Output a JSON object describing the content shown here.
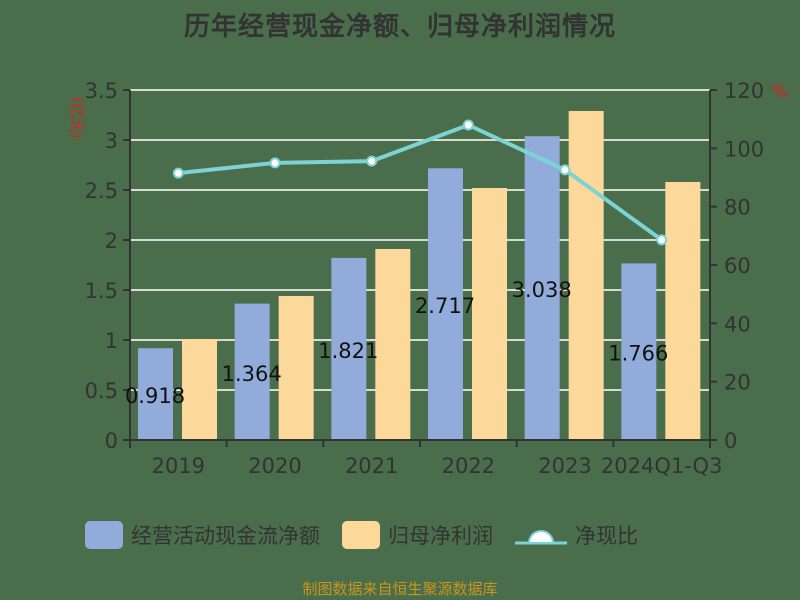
{
  "title": "历年经营现金净额、归母净利润情况",
  "source": "制图数据来自恒生聚源数据库",
  "colors": {
    "background": "#4a6e4b",
    "cash_flow_bar": "#91acdb",
    "net_profit_bar": "#fdd89b",
    "ratio_line": "#7dd3d3",
    "axis_unit": "#e0201c",
    "axis_text": "#333333",
    "grid": "#d8dcd0"
  },
  "chart_data": {
    "type": "bar+line",
    "title": "历年经营现金净额、归母净利润情况",
    "categories": [
      "2019",
      "2020",
      "2021",
      "2022",
      "2023",
      "2024Q1-Q3"
    ],
    "series": [
      {
        "name": "经营活动现金流净额",
        "type": "bar",
        "axis": "left",
        "values": [
          0.918,
          1.364,
          1.821,
          2.717,
          3.038,
          1.766
        ],
        "data_labels": [
          "0.918",
          "1.364",
          "1.821",
          "2.717",
          "3.038",
          "1.766"
        ]
      },
      {
        "name": "归母净利润",
        "type": "bar",
        "axis": "left",
        "values": [
          1.01,
          1.44,
          1.91,
          2.52,
          3.29,
          2.58
        ]
      },
      {
        "name": "净现比",
        "type": "line",
        "axis": "right",
        "values": [
          91.5,
          95.0,
          95.6,
          108.0,
          92.6,
          68.6
        ]
      }
    ],
    "left_axis": {
      "label": "(亿元)",
      "ylim": [
        0,
        3.5
      ],
      "ticks": [
        "0",
        "0.5",
        "1",
        "1.5",
        "2",
        "2.5",
        "3",
        "3.5"
      ]
    },
    "right_axis": {
      "label": "%",
      "ylim": [
        0,
        120
      ],
      "ticks": [
        "0",
        "20",
        "40",
        "60",
        "80",
        "100",
        "120"
      ]
    },
    "grid": true,
    "legend_position": "bottom"
  },
  "legend": [
    {
      "label": "经营活动现金流净额",
      "kind": "bar"
    },
    {
      "label": "归母净利润",
      "kind": "bar"
    },
    {
      "label": "净现比",
      "kind": "line"
    }
  ]
}
